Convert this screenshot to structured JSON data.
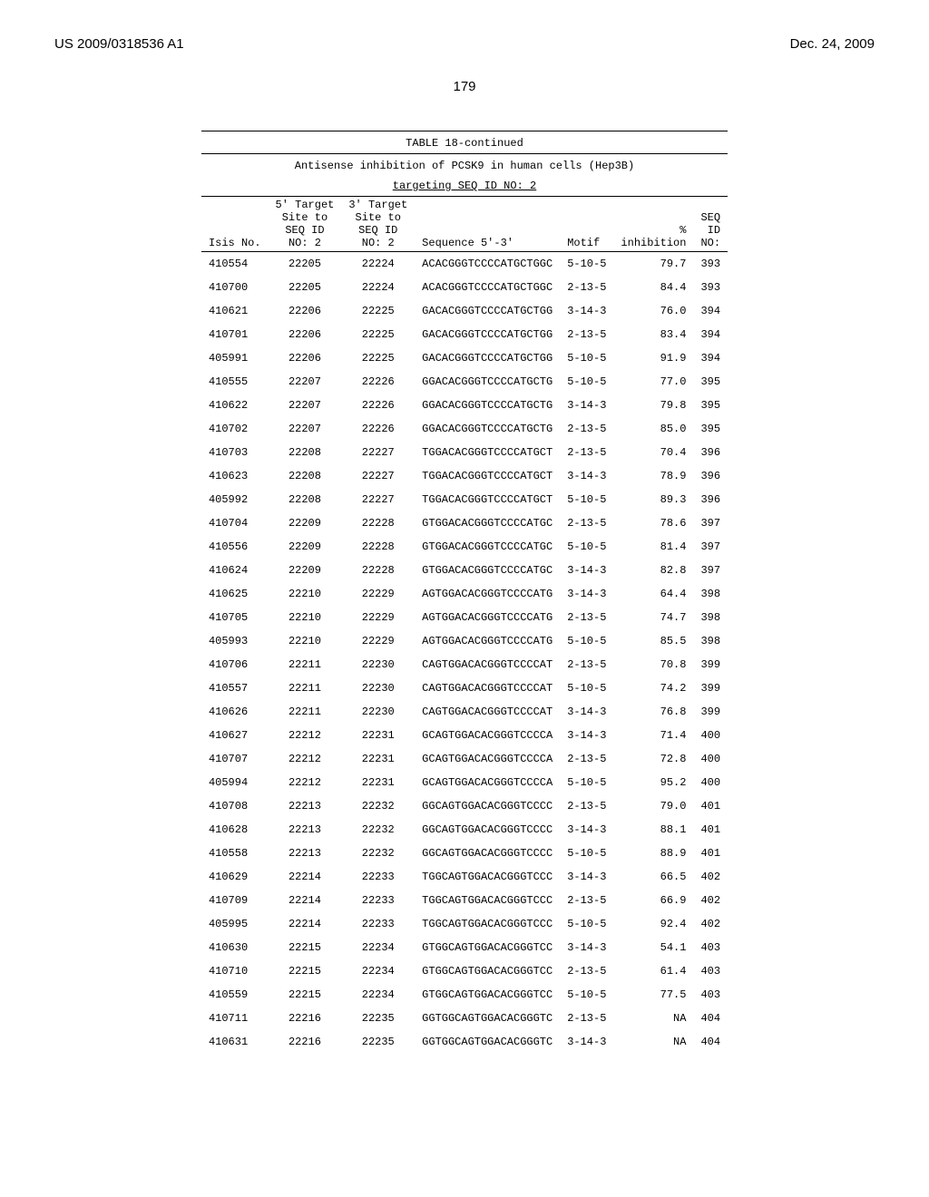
{
  "header": {
    "left": "US 2009/0318536 A1",
    "right": "Dec. 24, 2009"
  },
  "page_number": "179",
  "table": {
    "title": "TABLE 18-continued",
    "subtitle_line1": "Antisense inhibition of PCSK9 in human cells (Hep3B)",
    "subtitle_line2": "targeting SEQ ID NO: 2",
    "columns": {
      "isis": "Isis No.",
      "site5": "5' Target\nSite to\nSEQ ID\nNO: 2",
      "site3": "3' Target\nSite to\nSEQ ID\nNO: 2",
      "seq": "Sequence 5'-3'",
      "motif": "Motif",
      "inhib": "%\ninhibition",
      "seqid": "SEQ\nID\nNO:"
    },
    "rows": [
      {
        "isis": "410554",
        "s5": "22205",
        "s3": "22224",
        "seq": "ACACGGGTCCCCATGCTGGC",
        "motif": "5-10-5",
        "inhib": "79.7",
        "id": "393"
      },
      {
        "isis": "410700",
        "s5": "22205",
        "s3": "22224",
        "seq": "ACACGGGTCCCCATGCTGGC",
        "motif": "2-13-5",
        "inhib": "84.4",
        "id": "393"
      },
      {
        "isis": "410621",
        "s5": "22206",
        "s3": "22225",
        "seq": "GACACGGGTCCCCATGCTGG",
        "motif": "3-14-3",
        "inhib": "76.0",
        "id": "394"
      },
      {
        "isis": "410701",
        "s5": "22206",
        "s3": "22225",
        "seq": "GACACGGGTCCCCATGCTGG",
        "motif": "2-13-5",
        "inhib": "83.4",
        "id": "394"
      },
      {
        "isis": "405991",
        "s5": "22206",
        "s3": "22225",
        "seq": "GACACGGGTCCCCATGCTGG",
        "motif": "5-10-5",
        "inhib": "91.9",
        "id": "394"
      },
      {
        "isis": "410555",
        "s5": "22207",
        "s3": "22226",
        "seq": "GGACACGGGTCCCCATGCTG",
        "motif": "5-10-5",
        "inhib": "77.0",
        "id": "395"
      },
      {
        "isis": "410622",
        "s5": "22207",
        "s3": "22226",
        "seq": "GGACACGGGTCCCCATGCTG",
        "motif": "3-14-3",
        "inhib": "79.8",
        "id": "395"
      },
      {
        "isis": "410702",
        "s5": "22207",
        "s3": "22226",
        "seq": "GGACACGGGTCCCCATGCTG",
        "motif": "2-13-5",
        "inhib": "85.0",
        "id": "395"
      },
      {
        "isis": "410703",
        "s5": "22208",
        "s3": "22227",
        "seq": "TGGACACGGGTCCCCATGCT",
        "motif": "2-13-5",
        "inhib": "70.4",
        "id": "396"
      },
      {
        "isis": "410623",
        "s5": "22208",
        "s3": "22227",
        "seq": "TGGACACGGGTCCCCATGCT",
        "motif": "3-14-3",
        "inhib": "78.9",
        "id": "396"
      },
      {
        "isis": "405992",
        "s5": "22208",
        "s3": "22227",
        "seq": "TGGACACGGGTCCCCATGCT",
        "motif": "5-10-5",
        "inhib": "89.3",
        "id": "396"
      },
      {
        "isis": "410704",
        "s5": "22209",
        "s3": "22228",
        "seq": "GTGGACACGGGTCCCCATGC",
        "motif": "2-13-5",
        "inhib": "78.6",
        "id": "397"
      },
      {
        "isis": "410556",
        "s5": "22209",
        "s3": "22228",
        "seq": "GTGGACACGGGTCCCCATGC",
        "motif": "5-10-5",
        "inhib": "81.4",
        "id": "397"
      },
      {
        "isis": "410624",
        "s5": "22209",
        "s3": "22228",
        "seq": "GTGGACACGGGTCCCCATGC",
        "motif": "3-14-3",
        "inhib": "82.8",
        "id": "397"
      },
      {
        "isis": "410625",
        "s5": "22210",
        "s3": "22229",
        "seq": "AGTGGACACGGGTCCCCATG",
        "motif": "3-14-3",
        "inhib": "64.4",
        "id": "398"
      },
      {
        "isis": "410705",
        "s5": "22210",
        "s3": "22229",
        "seq": "AGTGGACACGGGTCCCCATG",
        "motif": "2-13-5",
        "inhib": "74.7",
        "id": "398"
      },
      {
        "isis": "405993",
        "s5": "22210",
        "s3": "22229",
        "seq": "AGTGGACACGGGTCCCCATG",
        "motif": "5-10-5",
        "inhib": "85.5",
        "id": "398"
      },
      {
        "isis": "410706",
        "s5": "22211",
        "s3": "22230",
        "seq": "CAGTGGACACGGGTCCCCAT",
        "motif": "2-13-5",
        "inhib": "70.8",
        "id": "399"
      },
      {
        "isis": "410557",
        "s5": "22211",
        "s3": "22230",
        "seq": "CAGTGGACACGGGTCCCCAT",
        "motif": "5-10-5",
        "inhib": "74.2",
        "id": "399"
      },
      {
        "isis": "410626",
        "s5": "22211",
        "s3": "22230",
        "seq": "CAGTGGACACGGGTCCCCAT",
        "motif": "3-14-3",
        "inhib": "76.8",
        "id": "399"
      },
      {
        "isis": "410627",
        "s5": "22212",
        "s3": "22231",
        "seq": "GCAGTGGACACGGGTCCCCA",
        "motif": "3-14-3",
        "inhib": "71.4",
        "id": "400"
      },
      {
        "isis": "410707",
        "s5": "22212",
        "s3": "22231",
        "seq": "GCAGTGGACACGGGTCCCCA",
        "motif": "2-13-5",
        "inhib": "72.8",
        "id": "400"
      },
      {
        "isis": "405994",
        "s5": "22212",
        "s3": "22231",
        "seq": "GCAGTGGACACGGGTCCCCA",
        "motif": "5-10-5",
        "inhib": "95.2",
        "id": "400"
      },
      {
        "isis": "410708",
        "s5": "22213",
        "s3": "22232",
        "seq": "GGCAGTGGACACGGGTCCCC",
        "motif": "2-13-5",
        "inhib": "79.0",
        "id": "401"
      },
      {
        "isis": "410628",
        "s5": "22213",
        "s3": "22232",
        "seq": "GGCAGTGGACACGGGTCCCC",
        "motif": "3-14-3",
        "inhib": "88.1",
        "id": "401"
      },
      {
        "isis": "410558",
        "s5": "22213",
        "s3": "22232",
        "seq": "GGCAGTGGACACGGGTCCCC",
        "motif": "5-10-5",
        "inhib": "88.9",
        "id": "401"
      },
      {
        "isis": "410629",
        "s5": "22214",
        "s3": "22233",
        "seq": "TGGCAGTGGACACGGGTCCC",
        "motif": "3-14-3",
        "inhib": "66.5",
        "id": "402"
      },
      {
        "isis": "410709",
        "s5": "22214",
        "s3": "22233",
        "seq": "TGGCAGTGGACACGGGTCCC",
        "motif": "2-13-5",
        "inhib": "66.9",
        "id": "402"
      },
      {
        "isis": "405995",
        "s5": "22214",
        "s3": "22233",
        "seq": "TGGCAGTGGACACGGGTCCC",
        "motif": "5-10-5",
        "inhib": "92.4",
        "id": "402"
      },
      {
        "isis": "410630",
        "s5": "22215",
        "s3": "22234",
        "seq": "GTGGCAGTGGACACGGGTCC",
        "motif": "3-14-3",
        "inhib": "54.1",
        "id": "403"
      },
      {
        "isis": "410710",
        "s5": "22215",
        "s3": "22234",
        "seq": "GTGGCAGTGGACACGGGTCC",
        "motif": "2-13-5",
        "inhib": "61.4",
        "id": "403"
      },
      {
        "isis": "410559",
        "s5": "22215",
        "s3": "22234",
        "seq": "GTGGCAGTGGACACGGGTCC",
        "motif": "5-10-5",
        "inhib": "77.5",
        "id": "403"
      },
      {
        "isis": "410711",
        "s5": "22216",
        "s3": "22235",
        "seq": "GGTGGCAGTGGACACGGGTC",
        "motif": "2-13-5",
        "inhib": "NA",
        "id": "404"
      },
      {
        "isis": "410631",
        "s5": "22216",
        "s3": "22235",
        "seq": "GGTGGCAGTGGACACGGGTC",
        "motif": "3-14-3",
        "inhib": "NA",
        "id": "404"
      }
    ]
  }
}
